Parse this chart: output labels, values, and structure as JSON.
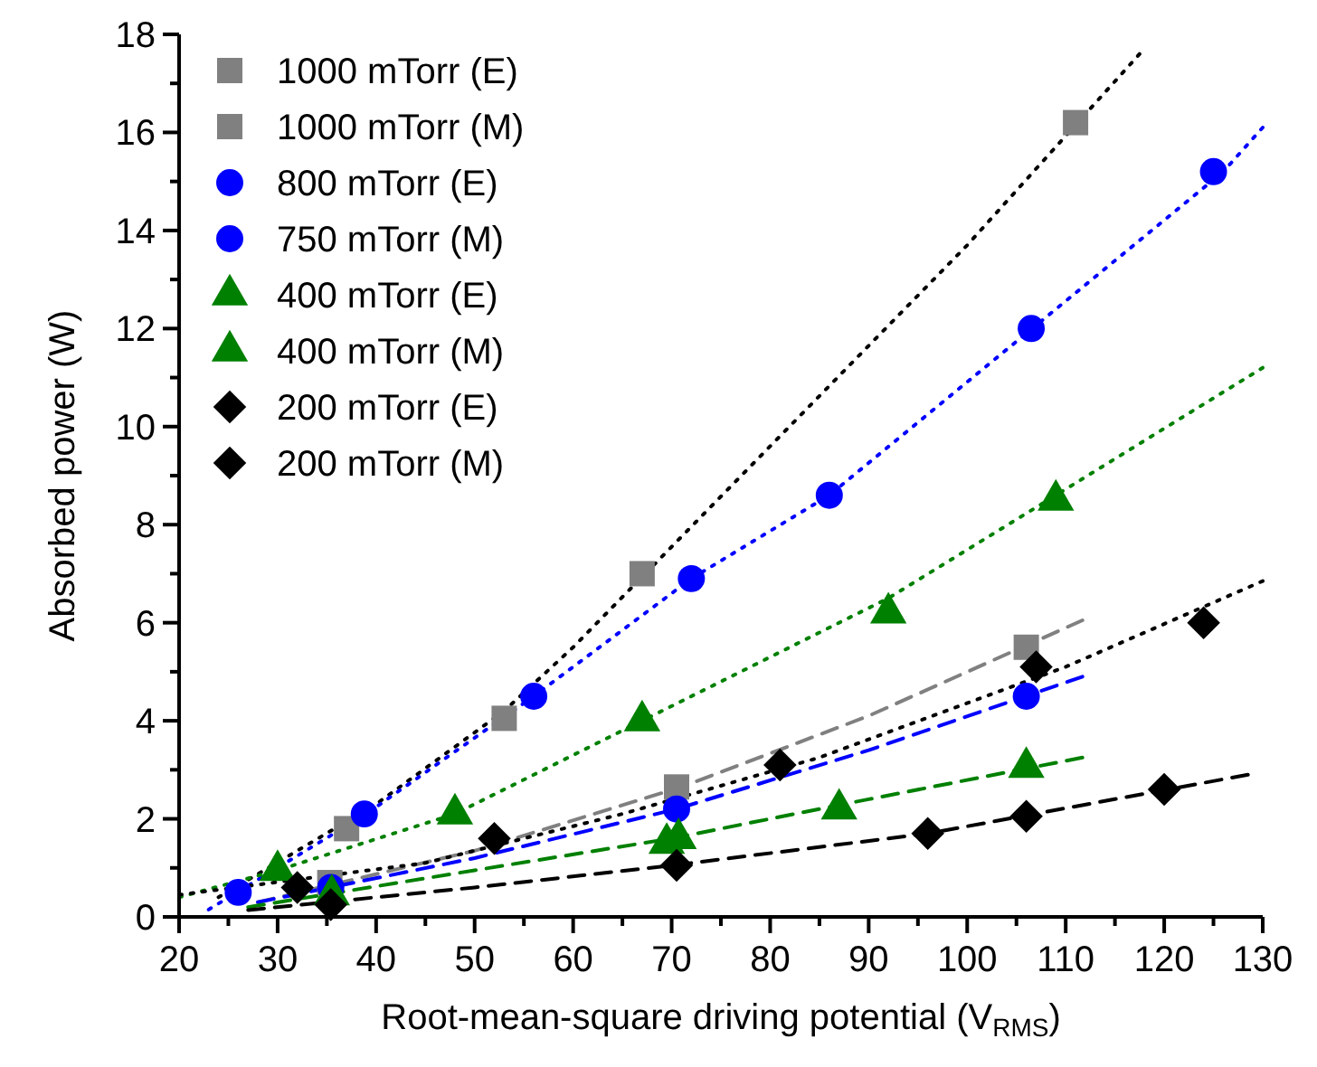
{
  "chart_data": {
    "type": "scatter",
    "xlabel": "Root-mean-square driving potential (V$_{RMS}$)",
    "ylabel": "Absorbed power (W)",
    "xlim": [
      20,
      130
    ],
    "ylim": [
      0,
      18
    ],
    "xticks": [
      20,
      {
        "value": 25,
        "label": null
      },
      30,
      {
        "value": 35,
        "label": null
      },
      40,
      {
        "value": 45,
        "label": null
      },
      50,
      {
        "value": 55,
        "label": null
      },
      60,
      {
        "value": 65,
        "label": null
      },
      70,
      {
        "value": 75,
        "label": null
      },
      80,
      {
        "value": 85,
        "label": null
      },
      90,
      {
        "value": 95,
        "label": null
      },
      100,
      {
        "value": 105,
        "label": null
      },
      110,
      {
        "value": 115,
        "label": null
      },
      120,
      {
        "value": 125,
        "label": null
      },
      130
    ],
    "yticks": [
      0,
      {
        "value": 1,
        "label": null
      },
      2,
      {
        "value": 3,
        "label": null
      },
      4,
      {
        "value": 5,
        "label": null
      },
      6,
      {
        "value": 7,
        "label": null
      },
      8,
      {
        "value": 9,
        "label": null
      },
      10,
      {
        "value": 11,
        "label": null
      },
      12,
      {
        "value": 13,
        "label": null
      },
      14,
      {
        "value": 15,
        "label": null
      },
      16,
      {
        "value": 17,
        "label": null
      },
      18
    ],
    "grid": false,
    "legend": "top left",
    "series": [
      {
        "type": "line",
        "color": "#000000",
        "line_style": "dotted",
        "marker": "none",
        "x": [
          24,
          40,
          53,
          60,
          80,
          100,
          117.5
        ],
        "values": [
          0.4,
          2.3,
          4.2,
          5.5,
          9.6,
          13.7,
          17.6
        ]
      },
      {
        "type": "line",
        "color": "#808080",
        "line_style": "dashed",
        "marker": "none",
        "x": [
          28,
          50,
          71,
          90,
          111.7
        ],
        "values": [
          0.3,
          1.35,
          2.65,
          4.1,
          6.05
        ]
      },
      {
        "type": "line",
        "color": "#0000ff",
        "line_style": "dotted",
        "marker": "none",
        "x": [
          23,
          39,
          56,
          72,
          86,
          106.6,
          126,
          130
        ],
        "values": [
          0.15,
          2.1,
          4.5,
          6.9,
          8.6,
          12.0,
          15.2,
          16.1
        ]
      },
      {
        "type": "line",
        "color": "#0000ff",
        "line_style": "dashed",
        "marker": "none",
        "x": [
          28,
          50,
          70.5,
          90,
          111.7
        ],
        "values": [
          0.3,
          1.2,
          2.2,
          3.4,
          4.9
        ]
      },
      {
        "type": "line",
        "color": "#008000",
        "line_style": "dotted",
        "marker": "none",
        "x": [
          20,
          30,
          48,
          67,
          92,
          109,
          130
        ],
        "values": [
          0.4,
          0.95,
          2.1,
          4.0,
          6.5,
          8.6,
          11.2
        ]
      },
      {
        "type": "line",
        "color": "#008000",
        "line_style": "dashed",
        "marker": "none",
        "x": [
          27,
          50,
          70,
          90,
          111.7
        ],
        "values": [
          0.2,
          0.95,
          1.6,
          2.4,
          3.25
        ]
      },
      {
        "type": "line",
        "color": "#000000",
        "line_style": "dotted",
        "marker": "none",
        "x": [
          20,
          45,
          65,
          85,
          110,
          130
        ],
        "values": [
          0.45,
          1.1,
          2.1,
          3.25,
          5.1,
          6.85
        ]
      },
      {
        "type": "line",
        "color": "#000000",
        "line_style": "dashed",
        "marker": "none",
        "x": [
          27,
          50,
          70,
          96,
          128.5
        ],
        "values": [
          0.14,
          0.6,
          1.05,
          1.7,
          2.9
        ]
      },
      {
        "name": "1000 mTorr (E)",
        "color": "#808080",
        "marker": "square",
        "x": [
          37,
          53,
          67,
          111
        ],
        "values": [
          1.8,
          4.05,
          7.0,
          16.2
        ]
      },
      {
        "name": "1000 mTorr (M)",
        "color": "#808080",
        "marker": "square",
        "x": [
          35.3,
          70.5,
          106
        ],
        "values": [
          0.7,
          2.65,
          5.5
        ]
      },
      {
        "name": "800 mTorr (E)",
        "color": "#0000ff",
        "marker": "circle",
        "x": [
          26,
          38.8,
          56,
          72,
          86,
          106.5,
          125
        ],
        "values": [
          0.5,
          2.1,
          4.5,
          6.9,
          8.6,
          12.0,
          15.2
        ]
      },
      {
        "name": "750 mTorr (M)",
        "color": "#0000ff",
        "marker": "circle",
        "x": [
          35.4,
          70.5,
          106
        ],
        "values": [
          0.6,
          2.2,
          4.5
        ]
      },
      {
        "name": "400 mTorr (E)",
        "color": "#008000",
        "marker": "triangle",
        "x": [
          30,
          48,
          67,
          92,
          109
        ],
        "values": [
          0.95,
          2.1,
          4.0,
          6.2,
          8.5
        ]
      },
      {
        "name": "400 mTorr (M)",
        "color": "#008000",
        "marker": "triangle",
        "x": [
          35.5,
          69.5,
          70.7,
          87,
          106
        ],
        "values": [
          0.45,
          1.5,
          1.6,
          2.2,
          3.05
        ]
      },
      {
        "name": "200 mTorr (E)",
        "color": "#000000",
        "marker": "diamond",
        "x": [
          32,
          52,
          81,
          107,
          124
        ],
        "values": [
          0.6,
          1.6,
          3.1,
          5.1,
          6.0
        ]
      },
      {
        "name": "200 mTorr (M)",
        "color": "#000000",
        "marker": "diamond",
        "x": [
          35.4,
          70.5,
          96,
          106,
          120
        ],
        "values": [
          0.25,
          1.05,
          1.7,
          2.05,
          2.6
        ]
      }
    ]
  }
}
